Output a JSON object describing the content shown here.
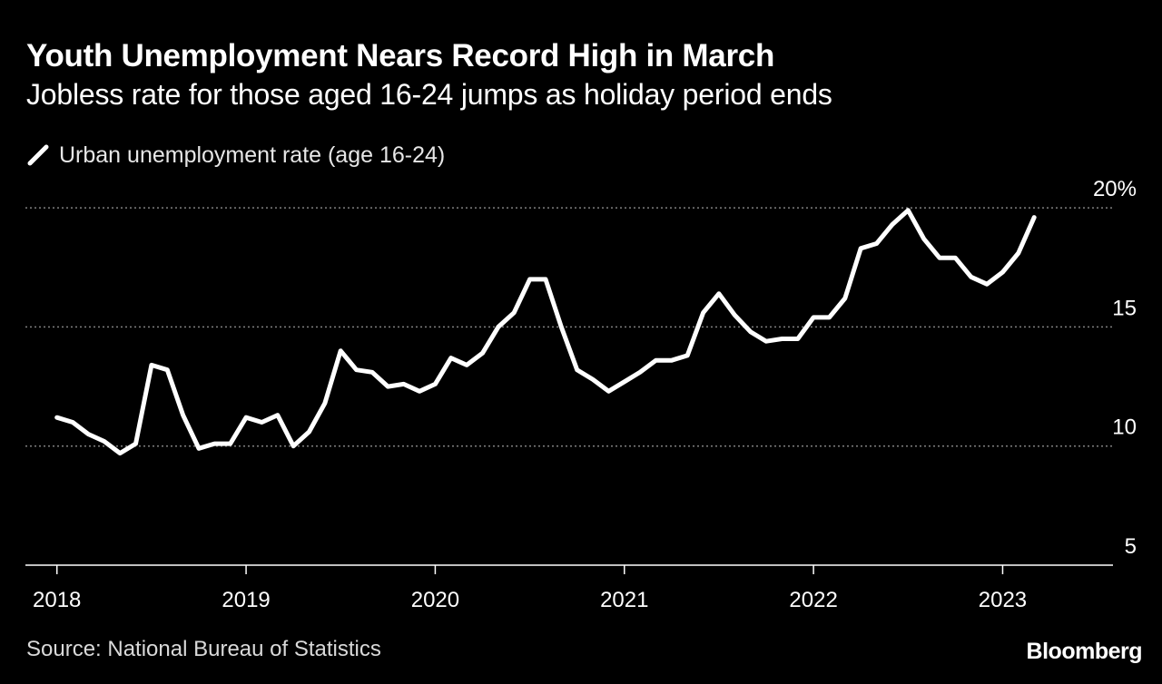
{
  "colors": {
    "background": "#000000",
    "line": "#ffffff",
    "grid": "#7f7f7f",
    "text": "#ffffff"
  },
  "chart_data": {
    "type": "line",
    "title": "Youth Unemployment Nears Record High in March",
    "subtitle": "Jobless rate for those aged 16-24 jumps as holiday period ends",
    "legend": [
      "Urban unemployment rate (age 16-24)"
    ],
    "legend_placement": "top-left",
    "source": "Source: National Bureau of Statistics",
    "brand": "Bloomberg",
    "xlabel": "",
    "ylabel": "",
    "x_tick_labels": [
      "2018",
      "2019",
      "2020",
      "2021",
      "2022",
      "2023"
    ],
    "y_ticks": [
      {
        "value": 20,
        "label": "20%"
      },
      {
        "value": 15,
        "label": "15"
      },
      {
        "value": 10,
        "label": "10"
      },
      {
        "value": 5,
        "label": "5"
      }
    ],
    "ylim": [
      5,
      20.5
    ],
    "xlim": [
      "2017-11",
      "2023-08"
    ],
    "y_axis_position": "right",
    "gridlines": "horizontal-dotted",
    "series": [
      {
        "name": "Urban unemployment rate (age 16-24)",
        "x": [
          "2018-01",
          "2018-02",
          "2018-03",
          "2018-04",
          "2018-05",
          "2018-06",
          "2018-07",
          "2018-08",
          "2018-09",
          "2018-10",
          "2018-11",
          "2018-12",
          "2019-01",
          "2019-02",
          "2019-03",
          "2019-04",
          "2019-05",
          "2019-06",
          "2019-07",
          "2019-08",
          "2019-09",
          "2019-10",
          "2019-11",
          "2019-12",
          "2020-01",
          "2020-02",
          "2020-03",
          "2020-04",
          "2020-05",
          "2020-06",
          "2020-07",
          "2020-08",
          "2020-09",
          "2020-10",
          "2020-11",
          "2020-12",
          "2021-01",
          "2021-02",
          "2021-03",
          "2021-04",
          "2021-05",
          "2021-06",
          "2021-07",
          "2021-08",
          "2021-09",
          "2021-10",
          "2021-11",
          "2021-12",
          "2022-01",
          "2022-02",
          "2022-03",
          "2022-04",
          "2022-05",
          "2022-06",
          "2022-07",
          "2022-08",
          "2022-09",
          "2022-10",
          "2022-11",
          "2022-12",
          "2023-01",
          "2023-02",
          "2023-03"
        ],
        "values": [
          11.2,
          11.0,
          10.5,
          10.2,
          9.7,
          10.1,
          13.4,
          13.2,
          11.3,
          9.9,
          10.1,
          10.1,
          11.2,
          11.0,
          11.3,
          10.0,
          10.6,
          11.8,
          14.0,
          13.2,
          13.1,
          12.5,
          12.6,
          12.3,
          12.6,
          13.7,
          13.4,
          13.9,
          15.0,
          15.6,
          17.0,
          17.0,
          15.0,
          13.2,
          12.8,
          12.3,
          12.7,
          13.1,
          13.6,
          13.6,
          13.8,
          15.6,
          16.4,
          15.5,
          14.8,
          14.4,
          14.5,
          14.5,
          15.4,
          15.4,
          16.2,
          18.3,
          18.5,
          19.3,
          19.9,
          18.7,
          17.9,
          17.9,
          17.1,
          16.8,
          17.3,
          18.1,
          19.6
        ]
      }
    ]
  }
}
